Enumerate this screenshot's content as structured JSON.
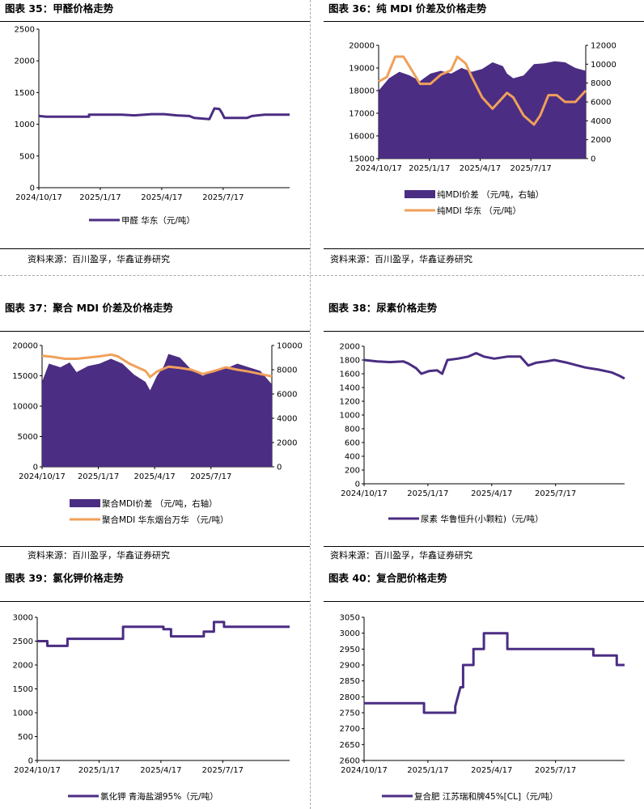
{
  "colors": {
    "purple": "#4b2d83",
    "orange": "#f0a05a"
  },
  "source_text": "资料来源：百川盈孚，华鑫证券研究",
  "charts": [
    {
      "id": "c35",
      "title": "图表 35：甲醛价格走势",
      "chart_data": {
        "type": "line",
        "title": "甲醛价格走势",
        "x_ticks": [
          "2024/10/17",
          "2025/1/17",
          "2025/4/17",
          "2025/7/17"
        ],
        "y_left": {
          "min": 0,
          "max": 2500,
          "step": 500,
          "ticks": [
            "0",
            "500",
            "1000",
            "1500",
            "2000",
            "2500"
          ]
        },
        "series": [
          {
            "name": "甲醛 华东（元/吨）",
            "type": "line",
            "color": "purple",
            "points": [
              [
                0,
                1130
              ],
              [
                0.03,
                1120
              ],
              [
                0.2,
                1120
              ],
              [
                0.2,
                1150
              ],
              [
                0.33,
                1150
              ],
              [
                0.38,
                1140
              ],
              [
                0.45,
                1160
              ],
              [
                0.5,
                1160
              ],
              [
                0.55,
                1140
              ],
              [
                0.6,
                1130
              ],
              [
                0.62,
                1100
              ],
              [
                0.65,
                1090
              ],
              [
                0.68,
                1080
              ],
              [
                0.7,
                1250
              ],
              [
                0.72,
                1240
              ],
              [
                0.73,
                1180
              ],
              [
                0.74,
                1100
              ],
              [
                0.83,
                1100
              ],
              [
                0.85,
                1130
              ],
              [
                0.9,
                1150
              ],
              [
                1.0,
                1150
              ]
            ]
          }
        ]
      }
    },
    {
      "id": "c36",
      "title": "图表 36：纯 MDI 价差及价格走势",
      "chart_data": {
        "type": "bar+line",
        "title": "纯MDI价差及价格走势",
        "x_ticks": [
          "2024/10/17",
          "2025/1/17",
          "2025/4/17",
          "2025/7/17"
        ],
        "y_left": {
          "min": 15000,
          "max": 20000,
          "step": 1000,
          "ticks": [
            "15000",
            "16000",
            "17000",
            "18000",
            "19000",
            "20000"
          ]
        },
        "y_right": {
          "min": 0,
          "max": 12000,
          "step": 2000,
          "ticks": [
            "0",
            "2000",
            "4000",
            "6000",
            "8000",
            "10000",
            "12000"
          ]
        },
        "series": [
          {
            "name": "纯MDI价差 （元/吨，右轴）",
            "type": "area",
            "axis": "right",
            "color": "purple",
            "points": [
              [
                0,
                7200
              ],
              [
                0.05,
                8500
              ],
              [
                0.1,
                9200
              ],
              [
                0.15,
                8800
              ],
              [
                0.2,
                8200
              ],
              [
                0.25,
                9000
              ],
              [
                0.3,
                9300
              ],
              [
                0.35,
                9000
              ],
              [
                0.4,
                9600
              ],
              [
                0.45,
                9200
              ],
              [
                0.5,
                9500
              ],
              [
                0.55,
                10200
              ],
              [
                0.6,
                9800
              ],
              [
                0.62,
                9000
              ],
              [
                0.65,
                8500
              ],
              [
                0.7,
                8800
              ],
              [
                0.75,
                10000
              ],
              [
                0.8,
                10100
              ],
              [
                0.85,
                10300
              ],
              [
                0.9,
                10200
              ],
              [
                0.95,
                9600
              ],
              [
                1.0,
                9300
              ]
            ]
          },
          {
            "name": "纯MDI 华东 （元/吨）",
            "type": "line",
            "axis": "left",
            "color": "orange",
            "points": [
              [
                0,
                18400
              ],
              [
                0.04,
                18600
              ],
              [
                0.08,
                19500
              ],
              [
                0.12,
                19500
              ],
              [
                0.16,
                18900
              ],
              [
                0.2,
                18300
              ],
              [
                0.25,
                18300
              ],
              [
                0.3,
                18700
              ],
              [
                0.35,
                18900
              ],
              [
                0.38,
                19500
              ],
              [
                0.42,
                19200
              ],
              [
                0.45,
                18600
              ],
              [
                0.5,
                17700
              ],
              [
                0.55,
                17200
              ],
              [
                0.58,
                17500
              ],
              [
                0.62,
                17900
              ],
              [
                0.65,
                17700
              ],
              [
                0.7,
                16900
              ],
              [
                0.75,
                16500
              ],
              [
                0.78,
                16900
              ],
              [
                0.82,
                17800
              ],
              [
                0.86,
                17800
              ],
              [
                0.9,
                17500
              ],
              [
                0.95,
                17500
              ],
              [
                1.0,
                18000
              ]
            ]
          }
        ]
      }
    },
    {
      "id": "c37",
      "title": "图表 37：聚合 MDI 价差及价格走势",
      "chart_data": {
        "type": "bar+line",
        "title": "聚合MDI价差及价格走势",
        "x_ticks": [
          "2024/10/17",
          "2025/1/17",
          "2025/4/17",
          "2025/7/17"
        ],
        "y_left": {
          "min": 0,
          "max": 20000,
          "step": 5000,
          "ticks": [
            "0",
            "5000",
            "10000",
            "15000",
            "20000"
          ]
        },
        "y_right": {
          "min": 0,
          "max": 10000,
          "step": 2000,
          "ticks": [
            "0",
            "2000",
            "4000",
            "6000",
            "8000",
            "10000"
          ]
        },
        "series": [
          {
            "name": "聚合MDI价差 （元/吨，右轴）",
            "type": "area",
            "axis": "right",
            "color": "purple",
            "points": [
              [
                0,
                7000
              ],
              [
                0.03,
                8500
              ],
              [
                0.08,
                8200
              ],
              [
                0.12,
                8600
              ],
              [
                0.15,
                7800
              ],
              [
                0.2,
                8300
              ],
              [
                0.25,
                8500
              ],
              [
                0.3,
                8900
              ],
              [
                0.35,
                8500
              ],
              [
                0.4,
                7600
              ],
              [
                0.45,
                7000
              ],
              [
                0.47,
                6300
              ],
              [
                0.5,
                7500
              ],
              [
                0.53,
                8300
              ],
              [
                0.55,
                9300
              ],
              [
                0.6,
                9000
              ],
              [
                0.65,
                8000
              ],
              [
                0.7,
                7500
              ],
              [
                0.75,
                8000
              ],
              [
                0.8,
                8100
              ],
              [
                0.85,
                8500
              ],
              [
                0.9,
                8200
              ],
              [
                0.95,
                7900
              ],
              [
                1.0,
                6800
              ]
            ]
          },
          {
            "name": "聚合MDI 华东烟台万华 （元/吨）",
            "type": "line",
            "axis": "left",
            "color": "orange",
            "points": [
              [
                0,
                18300
              ],
              [
                0.05,
                18100
              ],
              [
                0.1,
                17800
              ],
              [
                0.15,
                17800
              ],
              [
                0.2,
                18000
              ],
              [
                0.25,
                18200
              ],
              [
                0.3,
                18500
              ],
              [
                0.33,
                18200
              ],
              [
                0.38,
                17000
              ],
              [
                0.45,
                15800
              ],
              [
                0.47,
                14800
              ],
              [
                0.5,
                15700
              ],
              [
                0.55,
                16500
              ],
              [
                0.6,
                16300
              ],
              [
                0.65,
                16000
              ],
              [
                0.7,
                15300
              ],
              [
                0.75,
                15800
              ],
              [
                0.8,
                16400
              ],
              [
                0.85,
                16000
              ],
              [
                0.9,
                15700
              ],
              [
                0.95,
                15300
              ],
              [
                1.0,
                14900
              ]
            ]
          }
        ]
      }
    },
    {
      "id": "c38",
      "title": "图表 38：尿素价格走势",
      "chart_data": {
        "type": "line",
        "title": "尿素价格走势",
        "x_ticks": [
          "2024/10/17",
          "2025/1/17",
          "2025/4/17",
          "2025/7/17"
        ],
        "y_left": {
          "min": 0,
          "max": 2000,
          "step": 200,
          "ticks": [
            "0",
            "200",
            "400",
            "600",
            "800",
            "1000",
            "1200",
            "1400",
            "1600",
            "1800",
            "2000"
          ]
        },
        "series": [
          {
            "name": "尿素 华鲁恒升(小颗粒)（元/吨）",
            "type": "line",
            "color": "purple",
            "points": [
              [
                0,
                1800
              ],
              [
                0.05,
                1780
              ],
              [
                0.1,
                1770
              ],
              [
                0.15,
                1780
              ],
              [
                0.17,
                1750
              ],
              [
                0.2,
                1680
              ],
              [
                0.22,
                1600
              ],
              [
                0.25,
                1640
              ],
              [
                0.28,
                1650
              ],
              [
                0.3,
                1600
              ],
              [
                0.32,
                1800
              ],
              [
                0.36,
                1820
              ],
              [
                0.4,
                1850
              ],
              [
                0.43,
                1900
              ],
              [
                0.46,
                1850
              ],
              [
                0.5,
                1820
              ],
              [
                0.55,
                1850
              ],
              [
                0.6,
                1850
              ],
              [
                0.63,
                1720
              ],
              [
                0.66,
                1760
              ],
              [
                0.7,
                1780
              ],
              [
                0.73,
                1800
              ],
              [
                0.78,
                1760
              ],
              [
                0.82,
                1720
              ],
              [
                0.85,
                1690
              ],
              [
                0.9,
                1660
              ],
              [
                0.95,
                1620
              ],
              [
                0.98,
                1570
              ],
              [
                1.0,
                1530
              ]
            ]
          }
        ]
      }
    },
    {
      "id": "c39",
      "title": "图表 39：氯化钾价格走势",
      "chart_data": {
        "type": "line",
        "title": "氯化钾价格走势",
        "x_ticks": [
          "2024/10/17",
          "2025/1/17",
          "2025/4/17",
          "2025/7/17"
        ],
        "y_left": {
          "min": 0,
          "max": 3000,
          "step": 500,
          "ticks": [
            "0",
            "500",
            "1000",
            "1500",
            "2000",
            "2500",
            "3000"
          ]
        },
        "series": [
          {
            "name": "氯化钾 青海盐湖95%（元/吨）",
            "type": "line",
            "color": "purple",
            "points": [
              [
                0,
                2500
              ],
              [
                0.04,
                2500
              ],
              [
                0.04,
                2400
              ],
              [
                0.12,
                2400
              ],
              [
                0.12,
                2550
              ],
              [
                0.34,
                2550
              ],
              [
                0.34,
                2800
              ],
              [
                0.5,
                2800
              ],
              [
                0.5,
                2750
              ],
              [
                0.53,
                2750
              ],
              [
                0.53,
                2600
              ],
              [
                0.66,
                2600
              ],
              [
                0.66,
                2700
              ],
              [
                0.7,
                2700
              ],
              [
                0.7,
                2900
              ],
              [
                0.74,
                2900
              ],
              [
                0.74,
                2800
              ],
              [
                1.0,
                2800
              ]
            ]
          }
        ]
      }
    },
    {
      "id": "c40",
      "title": "图表 40：复合肥价格走势",
      "chart_data": {
        "type": "line",
        "title": "复合肥价格走势",
        "x_ticks": [
          "2024/10/17",
          "2025/1/17",
          "2025/4/17",
          "2025/7/17"
        ],
        "y_left": {
          "min": 2600,
          "max": 3050,
          "step": 50,
          "ticks": [
            "2600",
            "2650",
            "2700",
            "2750",
            "2800",
            "2850",
            "2900",
            "2950",
            "3000",
            "3050"
          ]
        },
        "series": [
          {
            "name": "复合肥 江苏瑞和牌45%[CL]（元/吨）",
            "type": "line",
            "color": "purple",
            "points": [
              [
                0,
                2780
              ],
              [
                0.23,
                2780
              ],
              [
                0.23,
                2750
              ],
              [
                0.35,
                2750
              ],
              [
                0.35,
                2770
              ],
              [
                0.36,
                2800
              ],
              [
                0.37,
                2830
              ],
              [
                0.38,
                2830
              ],
              [
                0.38,
                2900
              ],
              [
                0.42,
                2900
              ],
              [
                0.42,
                2950
              ],
              [
                0.46,
                2950
              ],
              [
                0.46,
                3000
              ],
              [
                0.55,
                3000
              ],
              [
                0.55,
                2950
              ],
              [
                0.88,
                2950
              ],
              [
                0.88,
                2930
              ],
              [
                0.97,
                2930
              ],
              [
                0.97,
                2900
              ],
              [
                1.0,
                2900
              ]
            ]
          }
        ]
      }
    }
  ]
}
